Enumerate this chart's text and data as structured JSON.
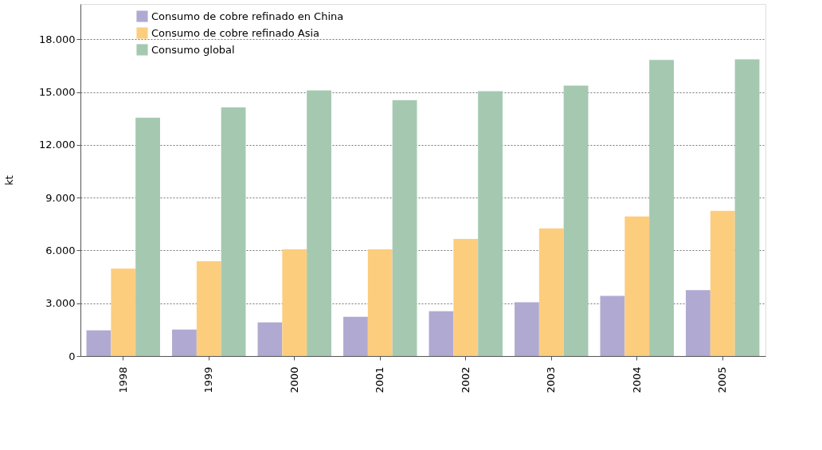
{
  "chart_data": {
    "type": "bar",
    "ylabel": "kt",
    "categories": [
      "1998",
      "1999",
      "2000",
      "2001",
      "2002",
      "2003",
      "2004",
      "2005"
    ],
    "series": [
      {
        "name": "Consumo de cobre refinado en China",
        "color": "#b0aad2",
        "values": [
          1460,
          1500,
          1910,
          2230,
          2550,
          3050,
          3420,
          3740
        ]
      },
      {
        "name": "Consumo de cobre refinado Asia",
        "color": "#fdcd7e",
        "values": [
          4970,
          5380,
          6060,
          6060,
          6650,
          7250,
          7930,
          8250
        ]
      },
      {
        "name": "Consumo global",
        "color": "#a4c9b0",
        "values": [
          13540,
          14130,
          15090,
          14540,
          15040,
          15360,
          16820,
          16860
        ]
      }
    ],
    "ylim": [
      0,
      20000
    ],
    "yticks": [
      0,
      {
        "value": 3000,
        "label": "3.000"
      },
      {
        "value": 6000,
        "label": "6.000"
      },
      {
        "value": 9000,
        "label": "9.000"
      },
      {
        "value": 12000,
        "label": "12.000"
      },
      {
        "value": 15000,
        "label": "15.000"
      },
      {
        "value": 18000,
        "label": "18.000"
      }
    ],
    "grid": "y",
    "legend": "top left"
  }
}
